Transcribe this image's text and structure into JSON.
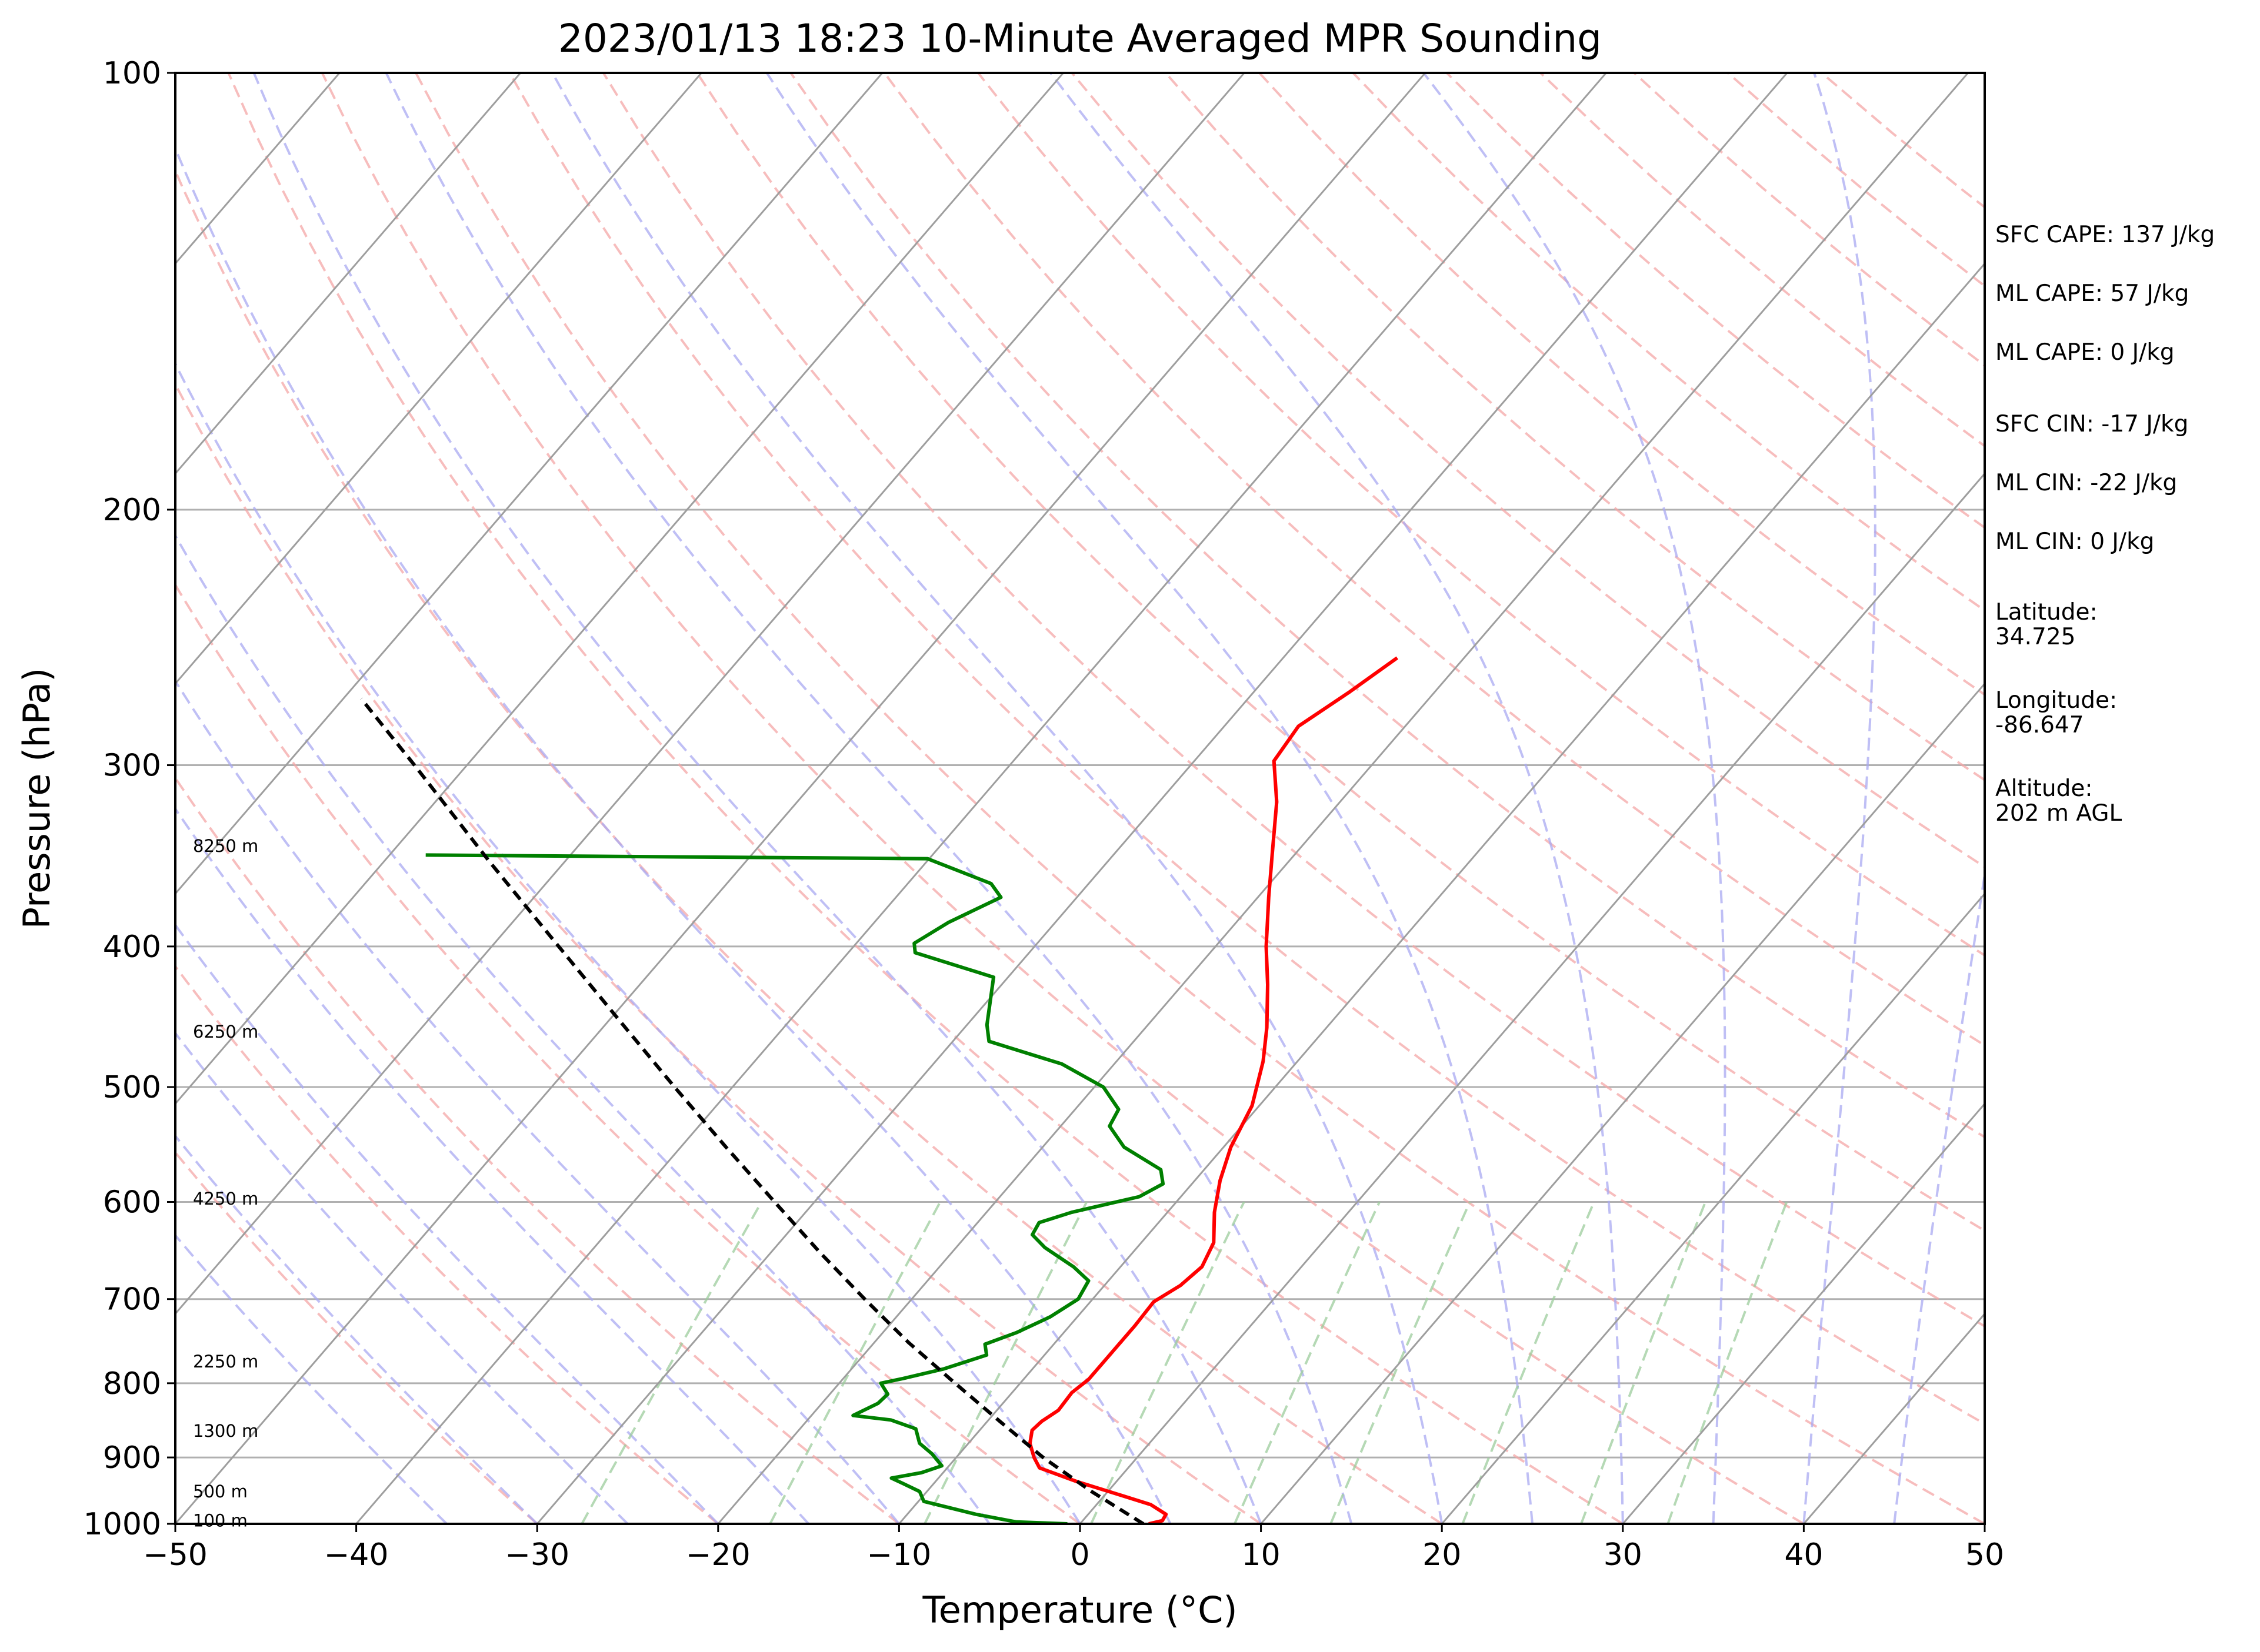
{
  "chart_data": {
    "type": "line",
    "title": "2023/01/13 18:23 10-Minute Averaged MPR Sounding",
    "xlabel": "Temperature (°C)",
    "ylabel": "Pressure (hPa)",
    "xlim": [
      -50,
      50
    ],
    "ylim": [
      1000,
      100
    ],
    "y_scale": "log",
    "skew": "skew-T log-p",
    "x_ticks": [
      "−50",
      "−40",
      "−30",
      "−20",
      "−10",
      "0",
      "10",
      "20",
      "30",
      "40",
      "50"
    ],
    "y_ticks": [
      "100",
      "200",
      "300",
      "400",
      "500",
      "600",
      "700",
      "800",
      "900",
      "1000"
    ],
    "grid": true,
    "series": [
      {
        "color": "#ff0000",
        "points": [
          {
            "p": 1000,
            "t": 3.8
          },
          {
            "p": 995,
            "t": 4.4
          },
          {
            "p": 985,
            "t": 4.3
          },
          {
            "p": 970,
            "t": 3.0
          },
          {
            "p": 955,
            "t": 0.8
          },
          {
            "p": 935,
            "t": -2.2
          },
          {
            "p": 915,
            "t": -4.9
          },
          {
            "p": 900,
            "t": -5.7
          },
          {
            "p": 880,
            "t": -6.6
          },
          {
            "p": 862,
            "t": -7.1
          },
          {
            "p": 850,
            "t": -7.0
          },
          {
            "p": 835,
            "t": -6.6
          },
          {
            "p": 812,
            "t": -6.7
          },
          {
            "p": 795,
            "t": -6.4
          },
          {
            "p": 765,
            "t": -6.4
          },
          {
            "p": 730,
            "t": -6.4
          },
          {
            "p": 703,
            "t": -6.5
          },
          {
            "p": 685,
            "t": -5.8
          },
          {
            "p": 665,
            "t": -5.5
          },
          {
            "p": 640,
            "t": -6.0
          },
          {
            "p": 610,
            "t": -7.4
          },
          {
            "p": 580,
            "t": -8.6
          },
          {
            "p": 550,
            "t": -9.6
          },
          {
            "p": 515,
            "t": -10.4
          },
          {
            "p": 480,
            "t": -11.9
          },
          {
            "p": 455,
            "t": -13.3
          },
          {
            "p": 425,
            "t": -15.3
          },
          {
            "p": 400,
            "t": -17.2
          },
          {
            "p": 370,
            "t": -19.4
          },
          {
            "p": 345,
            "t": -21.3
          },
          {
            "p": 318,
            "t": -23.5
          },
          {
            "p": 298,
            "t": -25.6
          },
          {
            "p": 282,
            "t": -25.9
          },
          {
            "p": 267,
            "t": -24.7
          },
          {
            "p": 253,
            "t": -23.7
          }
        ]
      },
      {
        "color": "#008000",
        "points": [
          {
            "p": 1000,
            "t": -0.7
          },
          {
            "p": 997,
            "t": -3.6
          },
          {
            "p": 985,
            "t": -6.2
          },
          {
            "p": 965,
            "t": -9.7
          },
          {
            "p": 950,
            "t": -10.4
          },
          {
            "p": 938,
            "t": -11.7
          },
          {
            "p": 930,
            "t": -12.6
          },
          {
            "p": 922,
            "t": -11.2
          },
          {
            "p": 912,
            "t": -10.4
          },
          {
            "p": 895,
            "t": -11.5
          },
          {
            "p": 880,
            "t": -12.7
          },
          {
            "p": 860,
            "t": -13.6
          },
          {
            "p": 848,
            "t": -15.4
          },
          {
            "p": 842,
            "t": -17.7
          },
          {
            "p": 826,
            "t": -16.9
          },
          {
            "p": 814,
            "t": -16.8
          },
          {
            "p": 800,
            "t": -17.7
          },
          {
            "p": 794,
            "t": -16.7
          },
          {
            "p": 782,
            "t": -14.9
          },
          {
            "p": 765,
            "t": -13.2
          },
          {
            "p": 752,
            "t": -13.8
          },
          {
            "p": 738,
            "t": -12.6
          },
          {
            "p": 720,
            "t": -11.5
          },
          {
            "p": 700,
            "t": -10.8
          },
          {
            "p": 680,
            "t": -11.1
          },
          {
            "p": 665,
            "t": -12.6
          },
          {
            "p": 645,
            "t": -15.1
          },
          {
            "p": 632,
            "t": -16.4
          },
          {
            "p": 620,
            "t": -16.6
          },
          {
            "p": 610,
            "t": -15.3
          },
          {
            "p": 595,
            "t": -12.3
          },
          {
            "p": 583,
            "t": -11.6
          },
          {
            "p": 570,
            "t": -12.4
          },
          {
            "p": 550,
            "t": -15.5
          },
          {
            "p": 532,
            "t": -17.3
          },
          {
            "p": 518,
            "t": -17.6
          },
          {
            "p": 500,
            "t": -19.5
          },
          {
            "p": 482,
            "t": -22.9
          },
          {
            "p": 465,
            "t": -28.0
          },
          {
            "p": 453,
            "t": -28.9
          },
          {
            "p": 420,
            "t": -30.8
          },
          {
            "p": 404,
            "t": -36.3
          },
          {
            "p": 398,
            "t": -36.8
          },
          {
            "p": 385,
            "t": -35.9
          },
          {
            "p": 370,
            "t": -34.2
          },
          {
            "p": 362,
            "t": -35.4
          },
          {
            "p": 348,
            "t": -40.1
          },
          {
            "p": 346,
            "t": -68.0
          }
        ]
      },
      {
        "color": "#000000",
        "style": "dashed",
        "points": [
          {
            "p": 1000,
            "t": 3.5
          },
          {
            "p": 950,
            "t": -0.9
          },
          {
            "p": 900,
            "t": -5.2
          },
          {
            "p": 850,
            "t": -9.3
          },
          {
            "p": 800,
            "t": -13.6
          },
          {
            "p": 750,
            "t": -18.1
          },
          {
            "p": 700,
            "t": -22.6
          },
          {
            "p": 650,
            "t": -27.3
          },
          {
            "p": 600,
            "t": -32.2
          },
          {
            "p": 550,
            "t": -37.5
          },
          {
            "p": 500,
            "t": -43.2
          },
          {
            "p": 450,
            "t": -49.4
          },
          {
            "p": 400,
            "t": -56.3
          },
          {
            "p": 350,
            "t": -64.1
          },
          {
            "p": 300,
            "t": -72.9
          },
          {
            "p": 270,
            "t": -79.0
          }
        ]
      }
    ],
    "height_labels": [
      {
        "text": "100 m",
        "p": 995
      },
      {
        "text": "500 m",
        "p": 950
      },
      {
        "text": "1300 m",
        "p": 863
      },
      {
        "text": "2250 m",
        "p": 773
      },
      {
        "text": "4250 m",
        "p": 597
      },
      {
        "text": "6250 m",
        "p": 458
      },
      {
        "text": "8250 m",
        "p": 341
      }
    ],
    "background_lines": {
      "isotherm_color": "#9e9e9e",
      "dry_adiabat_color": "#f4a7a7",
      "moist_adiabat_color": "#aaaaf2",
      "mixing_ratio_color": "#9ccc9c",
      "mixing_ratios_gkg": [
        0.4,
        1,
        2,
        4,
        7,
        10,
        16,
        24,
        32
      ]
    },
    "stats": [
      [
        "SFC CAPE: 137 J/kg"
      ],
      [
        "ML CAPE: 57 J/kg"
      ],
      [
        "ML CAPE: 0 J/kg"
      ],
      [
        "SFC CIN: -17 J/kg"
      ],
      [
        "ML CIN: -22 J/kg"
      ],
      [
        "ML CIN: 0 J/kg"
      ],
      [
        "Latitude:",
        "34.725"
      ],
      [
        "Longitude:",
        "-86.647"
      ],
      [
        "Altitude:",
        "202 m AGL"
      ]
    ]
  }
}
